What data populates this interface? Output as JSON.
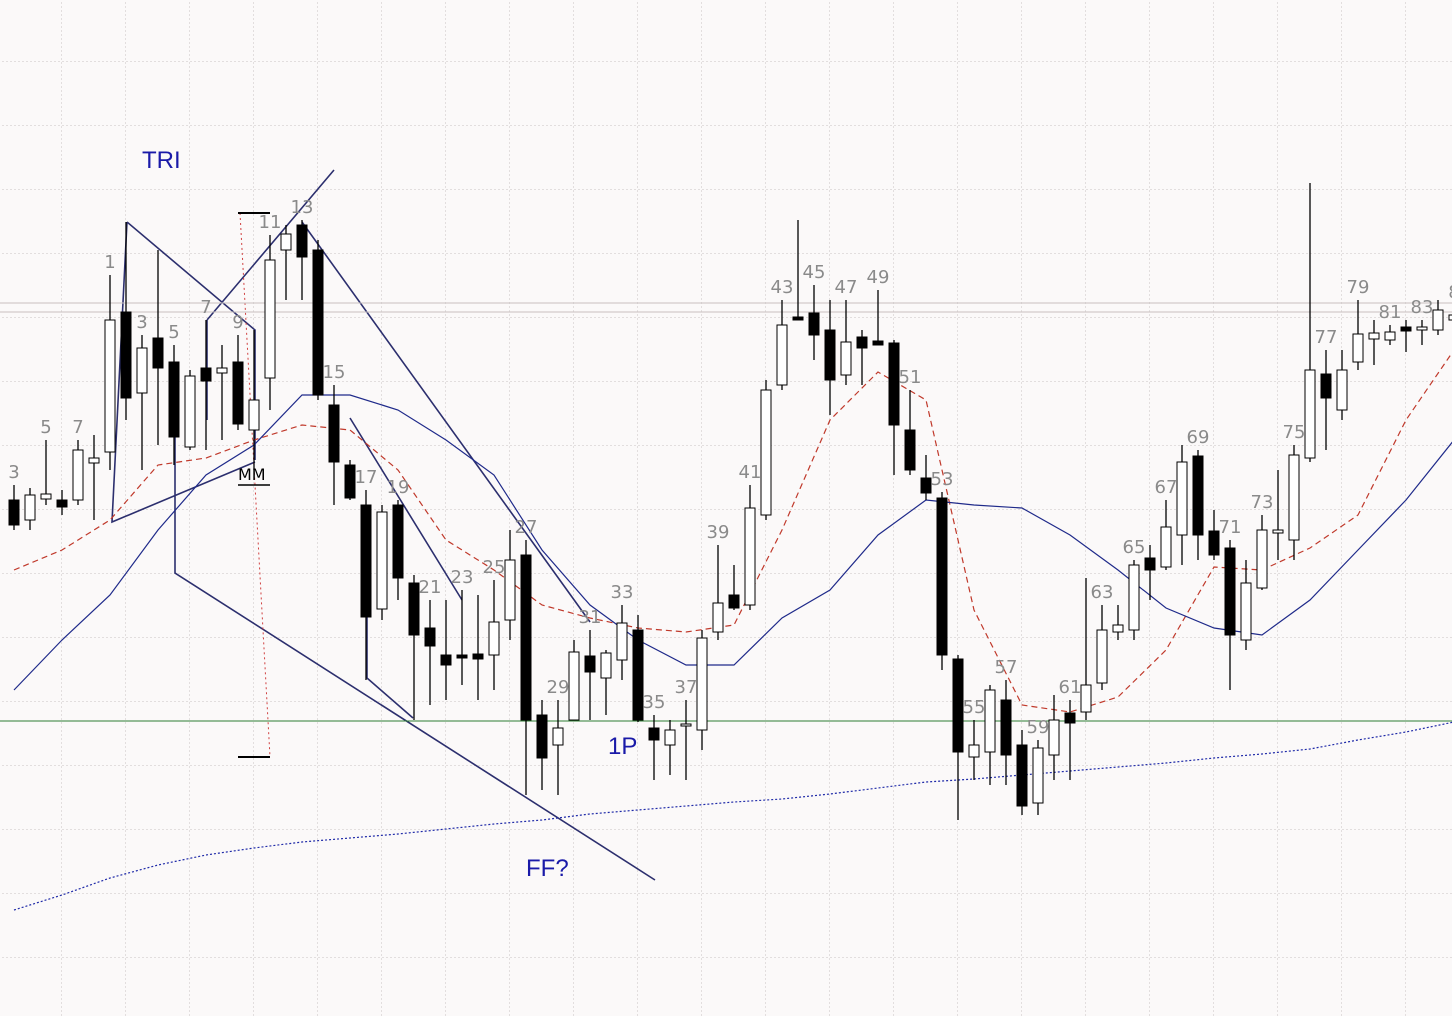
{
  "chart_data": {
    "type": "candlestick",
    "categories": [
      "3",
      null,
      "5",
      null,
      "7",
      null,
      "1",
      null,
      "3",
      null,
      "5",
      null,
      "7",
      null,
      "9",
      null,
      "11",
      null,
      "13",
      null,
      "15",
      null,
      "17",
      null,
      "19",
      null,
      "21",
      null,
      "23",
      null,
      "25",
      null,
      "27",
      null,
      "29",
      null,
      "31",
      null,
      "33",
      null,
      "35",
      null,
      "37",
      null,
      "39",
      null,
      "41",
      null,
      "43",
      null,
      "45",
      null,
      "47",
      null,
      "49",
      null,
      "51",
      null,
      "53",
      null,
      "55",
      null,
      "57",
      null,
      "59",
      null,
      "61",
      null,
      "63",
      null,
      "65",
      null,
      "67",
      null,
      "69",
      null,
      "71",
      null,
      "73",
      null,
      "75",
      null,
      "77",
      null,
      "79",
      null,
      "81",
      null,
      "83",
      null,
      "8"
    ],
    "open": [
      516,
      496,
      517,
      516,
      516,
      553,
      564,
      704,
      623,
      678,
      654,
      569,
      648,
      643,
      654,
      586,
      638,
      766,
      791,
      766,
      611,
      551,
      511,
      407,
      511,
      433,
      388,
      361,
      361,
      362,
      361,
      396,
      461,
      301,
      271,
      296,
      360,
      338,
      356,
      386,
      288,
      271,
      290,
      286,
      384,
      421,
      411,
      501,
      631,
      699,
      703,
      686,
      641,
      679,
      675,
      673,
      586,
      538,
      518,
      357,
      259,
      264,
      316,
      271,
      213,
      261,
      303,
      304,
      333,
      384,
      386,
      458,
      449,
      481,
      560,
      485,
      468,
      376,
      428,
      483,
      476,
      558,
      642,
      606,
      654,
      677,
      676,
      689,
      686,
      686,
      696
    ],
    "high": [
      531,
      528,
      576,
      526,
      576,
      581,
      741,
      794,
      681,
      766,
      671,
      646,
      696,
      671,
      681,
      686,
      781,
      791,
      796,
      776,
      631,
      556,
      526,
      511,
      516,
      441,
      416,
      416,
      426,
      421,
      436,
      486,
      476,
      316,
      316,
      376,
      386,
      366,
      411,
      401,
      301,
      296,
      316,
      386,
      471,
      451,
      531,
      636,
      716,
      796,
      731,
      716,
      716,
      686,
      726,
      676,
      626,
      561,
      524,
      361,
      296,
      331,
      336,
      286,
      276,
      321,
      316,
      438,
      411,
      411,
      456,
      471,
      516,
      571,
      566,
      506,
      476,
      456,
      501,
      546,
      571,
      833,
      666,
      666,
      716,
      696,
      691,
      696,
      696,
      716,
      711
    ],
    "low": [
      486,
      486,
      511,
      501,
      511,
      496,
      546,
      596,
      546,
      571,
      551,
      566,
      566,
      576,
      586,
      546,
      606,
      716,
      716,
      616,
      511,
      516,
      336,
      396,
      416,
      296,
      311,
      316,
      331,
      316,
      326,
      376,
      221,
      226,
      221,
      296,
      296,
      301,
      336,
      294,
      236,
      241,
      236,
      266,
      376,
      406,
      406,
      496,
      626,
      696,
      656,
      601,
      631,
      631,
      671,
      541,
      541,
      516,
      346,
      196,
      236,
      231,
      231,
      201,
      201,
      236,
      236,
      296,
      326,
      376,
      376,
      416,
      446,
      451,
      456,
      456,
      326,
      366,
      426,
      456,
      456,
      554,
      566,
      596,
      646,
      651,
      671,
      664,
      671,
      681,
      686
    ],
    "close": [
      491,
      521,
      522,
      509,
      566,
      558,
      696,
      618,
      668,
      648,
      579,
      640,
      635,
      648,
      592,
      616,
      756,
      782,
      759,
      621,
      554,
      518,
      399,
      504,
      438,
      381,
      370,
      351,
      358,
      357,
      394,
      456,
      296,
      258,
      288,
      364,
      344,
      363,
      393,
      296,
      276,
      286,
      292,
      378,
      413,
      408,
      508,
      626,
      691,
      696,
      681,
      636,
      674,
      668,
      671,
      591,
      546,
      523,
      361,
      264,
      271,
      326,
      261,
      210,
      268,
      296,
      293,
      331,
      386,
      391,
      451,
      446,
      489,
      554,
      481,
      461,
      381,
      433,
      486,
      486,
      561,
      646,
      618,
      646,
      682,
      683,
      684,
      685,
      689,
      706,
      701
    ],
    "up_color": "#ffffff",
    "down_color": "#000000",
    "ylim": [
      0,
      1016
    ],
    "overlays": [
      {
        "color": "#c0392b",
        "style": "dashed",
        "x": [
          0,
          3,
          6,
          9,
          12,
          15,
          18,
          21,
          24,
          27,
          30,
          33,
          36,
          39,
          42,
          45,
          48,
          51,
          54,
          57,
          60,
          63,
          66,
          69,
          72,
          75,
          78,
          81,
          84,
          87,
          90
        ],
        "values": [
          446,
          466,
          496,
          551,
          558,
          576,
          591,
          586,
          546,
          476,
          446,
          411,
          398,
          388,
          384,
          391,
          486,
          596,
          644,
          616,
          406,
          311,
          304,
          319,
          366,
          449,
          446,
          468,
          501,
          596,
          666
        ]
      },
      {
        "color": "#1f2a8a",
        "style": "solid",
        "x": [
          0,
          3,
          6,
          9,
          12,
          15,
          18,
          21,
          24,
          27,
          30,
          33,
          36,
          39,
          42,
          45,
          48,
          51,
          54,
          57,
          60,
          63,
          66,
          69,
          72,
          75,
          78,
          81,
          84,
          87,
          90
        ],
        "values": [
          326,
          376,
          421,
          486,
          541,
          571,
          621,
          621,
          606,
          576,
          541,
          466,
          411,
          376,
          351,
          351,
          398,
          426,
          481,
          516,
          511,
          508,
          481,
          446,
          408,
          388,
          381,
          416,
          466,
          516,
          576
        ]
      },
      {
        "color": "#1f2aa8",
        "style": "dotted",
        "x": [
          0,
          3,
          6,
          9,
          12,
          15,
          18,
          21,
          24,
          27,
          30,
          33,
          36,
          39,
          42,
          45,
          48,
          51,
          54,
          57,
          60,
          63,
          66,
          69,
          72,
          75,
          78,
          81,
          84,
          87,
          90
        ],
        "values": [
          106,
          121,
          138,
          151,
          161,
          168,
          174,
          178,
          182,
          187,
          192,
          196,
          202,
          206,
          210,
          214,
          217,
          222,
          228,
          234,
          237,
          241,
          245,
          249,
          253,
          258,
          262,
          267,
          276,
          284,
          294
        ]
      }
    ],
    "hlines": [
      {
        "value": 295,
        "color": "#2e7d32"
      },
      {
        "value": 713,
        "color": "#c8c0c0"
      },
      {
        "value": 704,
        "color": "#c8c0c0"
      }
    ],
    "annotations": [
      "TRI",
      "MM",
      "FF?",
      "1P"
    ]
  }
}
